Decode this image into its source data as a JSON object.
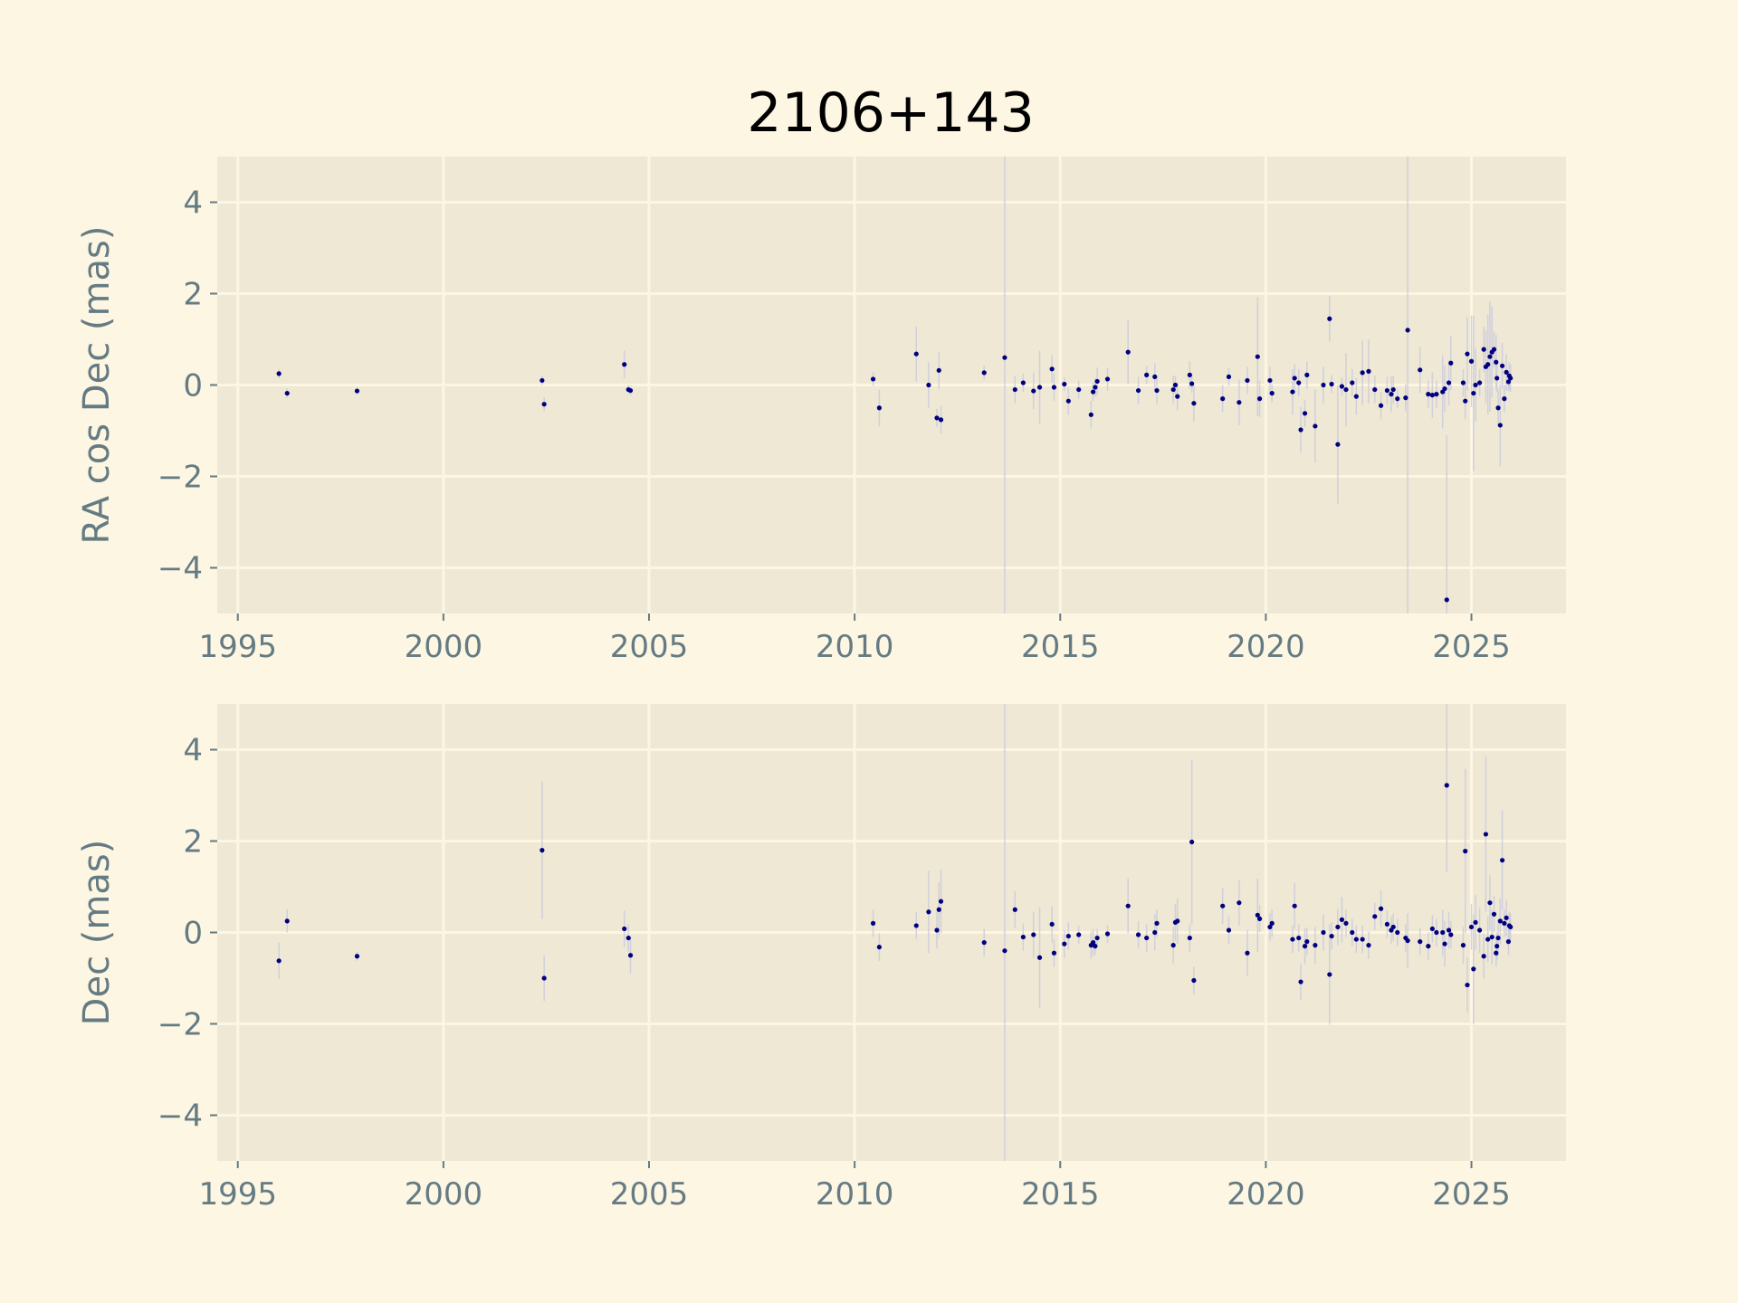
{
  "chart_data": {
    "type": "scatter",
    "title": "2106+143",
    "grid": true,
    "colors": {
      "figure_bg": "#fdf6e3",
      "axes_bg": "#eee8d5",
      "grid": "#fdf6e3",
      "tick_text": "#657b83",
      "marker": "#000080",
      "errorbar": "#c9c9dc"
    },
    "panels": [
      {
        "id": "ra",
        "ylabel": "RA cos Dec (mas)",
        "xlim": [
          1994.5,
          2027.3
        ],
        "ylim": [
          -5,
          5
        ],
        "xticks": [
          1995,
          2000,
          2005,
          2010,
          2015,
          2020,
          2025
        ],
        "xtick_labels": [
          "1995",
          "2000",
          "2005",
          "2010",
          "2015",
          "2020",
          "2025"
        ],
        "yticks": [
          -4,
          -2,
          0,
          2,
          4
        ],
        "ytick_labels": [
          "−4",
          "−2",
          "0",
          "2",
          "4"
        ],
        "points": [
          [
            1996.0,
            0.25,
            0.1
          ],
          [
            1996.2,
            -0.18,
            0.1
          ],
          [
            1997.9,
            -0.13,
            0.08
          ],
          [
            2002.4,
            0.1,
            0.1
          ],
          [
            2002.45,
            -0.42,
            0.15
          ],
          [
            2004.4,
            0.45,
            0.3
          ],
          [
            2004.5,
            -0.1,
            0.1
          ],
          [
            2004.55,
            -0.12,
            0.1
          ],
          [
            2010.45,
            0.13,
            0.15
          ],
          [
            2010.6,
            -0.5,
            0.4
          ],
          [
            2011.5,
            0.68,
            0.6
          ],
          [
            2011.8,
            0.0,
            0.5
          ],
          [
            2012.0,
            -0.72,
            0.2
          ],
          [
            2012.05,
            0.32,
            0.4
          ],
          [
            2012.1,
            -0.76,
            0.3
          ],
          [
            2013.15,
            0.27,
            0.15
          ],
          [
            2013.65,
            0.6,
            6.5
          ],
          [
            2013.9,
            -0.1,
            0.3
          ],
          [
            2014.1,
            0.05,
            0.2
          ],
          [
            2014.35,
            -0.13,
            0.4
          ],
          [
            2014.5,
            -0.05,
            0.8
          ],
          [
            2014.8,
            0.35,
            0.3
          ],
          [
            2014.85,
            -0.05,
            0.3
          ],
          [
            2015.1,
            0.02,
            0.15
          ],
          [
            2015.2,
            -0.35,
            0.3
          ],
          [
            2015.45,
            -0.1,
            0.2
          ],
          [
            2015.75,
            -0.65,
            0.3
          ],
          [
            2015.8,
            -0.15,
            0.2
          ],
          [
            2015.85,
            -0.05,
            0.2
          ],
          [
            2015.9,
            0.08,
            0.3
          ],
          [
            2016.15,
            0.13,
            0.25
          ],
          [
            2016.65,
            0.72,
            0.7
          ],
          [
            2016.9,
            -0.12,
            0.3
          ],
          [
            2017.1,
            0.22,
            0.2
          ],
          [
            2017.3,
            0.18,
            0.3
          ],
          [
            2017.35,
            -0.12,
            0.3
          ],
          [
            2017.75,
            -0.1,
            0.3
          ],
          [
            2017.8,
            0.0,
            0.2
          ],
          [
            2017.85,
            -0.25,
            0.3
          ],
          [
            2018.15,
            0.22,
            0.3
          ],
          [
            2018.2,
            0.03,
            0.2
          ],
          [
            2018.25,
            -0.4,
            0.4
          ],
          [
            2018.95,
            -0.3,
            0.3
          ],
          [
            2019.1,
            0.18,
            0.2
          ],
          [
            2019.35,
            -0.38,
            0.5
          ],
          [
            2019.55,
            0.1,
            0.3
          ],
          [
            2019.8,
            0.62,
            1.3
          ],
          [
            2019.85,
            -0.3,
            0.4
          ],
          [
            2020.1,
            0.1,
            0.3
          ],
          [
            2020.15,
            -0.18,
            0.2
          ],
          [
            2020.65,
            -0.15,
            0.5
          ],
          [
            2020.7,
            0.15,
            0.3
          ],
          [
            2020.8,
            0.05,
            0.3
          ],
          [
            2020.85,
            -0.98,
            0.5
          ],
          [
            2020.95,
            -0.62,
            0.3
          ],
          [
            2021.0,
            0.22,
            0.3
          ],
          [
            2021.2,
            -0.9,
            0.8
          ],
          [
            2021.4,
            0.0,
            0.4
          ],
          [
            2021.55,
            1.45,
            0.5
          ],
          [
            2021.6,
            0.02,
            0.2
          ],
          [
            2021.75,
            -1.3,
            1.3
          ],
          [
            2021.85,
            -0.03,
            0.2
          ],
          [
            2021.95,
            -0.1,
            0.8
          ],
          [
            2022.1,
            0.05,
            0.3
          ],
          [
            2022.2,
            -0.25,
            0.4
          ],
          [
            2022.35,
            0.27,
            0.7
          ],
          [
            2022.5,
            0.3,
            0.7
          ],
          [
            2022.65,
            -0.1,
            0.3
          ],
          [
            2022.8,
            -0.45,
            0.3
          ],
          [
            2022.95,
            -0.12,
            0.3
          ],
          [
            2023.05,
            -0.2,
            0.4
          ],
          [
            2023.1,
            -0.1,
            0.3
          ],
          [
            2023.2,
            -0.3,
            0.2
          ],
          [
            2023.4,
            -0.28,
            0.3
          ],
          [
            2023.45,
            1.2,
            6.5
          ],
          [
            2023.75,
            0.33,
            0.5
          ],
          [
            2023.95,
            -0.2,
            0.3
          ],
          [
            2024.05,
            -0.22,
            0.5
          ],
          [
            2024.15,
            -0.2,
            0.3
          ],
          [
            2024.3,
            -0.15,
            0.8
          ],
          [
            2024.35,
            -0.08,
            0.5
          ],
          [
            2024.4,
            -4.7,
            3.6
          ],
          [
            2024.45,
            0.05,
            0.5
          ],
          [
            2024.5,
            0.48,
            0.6
          ],
          [
            2024.8,
            0.05,
            0.3
          ],
          [
            2024.85,
            -0.35,
            0.4
          ],
          [
            2024.9,
            0.68,
            0.8
          ],
          [
            2025.0,
            0.52,
            1.0
          ],
          [
            2025.05,
            -0.18,
            1.7
          ],
          [
            2025.1,
            0.0,
            0.8
          ],
          [
            2025.2,
            0.05,
            0.3
          ],
          [
            2025.3,
            0.78,
            0.5
          ],
          [
            2025.35,
            0.4,
            0.8
          ],
          [
            2025.4,
            0.45,
            1.1
          ],
          [
            2025.45,
            0.62,
            1.2
          ],
          [
            2025.5,
            0.72,
            1.0
          ],
          [
            2025.55,
            0.78,
            0.4
          ],
          [
            2025.6,
            0.5,
            0.6
          ],
          [
            2025.62,
            0.15,
            0.3
          ],
          [
            2025.65,
            -0.5,
            0.4
          ],
          [
            2025.7,
            -0.88,
            0.9
          ],
          [
            2025.75,
            0.42,
            0.5
          ],
          [
            2025.8,
            -0.3,
            0.3
          ],
          [
            2025.85,
            0.28,
            0.4
          ],
          [
            2025.9,
            0.07,
            0.2
          ],
          [
            2025.92,
            0.2,
            0.3
          ],
          [
            2025.95,
            0.15,
            0.3
          ]
        ]
      },
      {
        "id": "dec",
        "ylabel": "Dec (mas)",
        "xlim": [
          1994.5,
          2027.3
        ],
        "ylim": [
          -5,
          5
        ],
        "xticks": [
          1995,
          2000,
          2005,
          2010,
          2015,
          2020,
          2025
        ],
        "xtick_labels": [
          "1995",
          "2000",
          "2005",
          "2010",
          "2015",
          "2020",
          "2025"
        ],
        "yticks": [
          -4,
          -2,
          0,
          2,
          4
        ],
        "ytick_labels": [
          "−4",
          "−2",
          "0",
          "2",
          "4"
        ],
        "points": [
          [
            1996.0,
            -0.62,
            0.4
          ],
          [
            1996.2,
            0.25,
            0.25
          ],
          [
            1997.9,
            -0.52,
            0.1
          ],
          [
            2002.4,
            1.8,
            1.5
          ],
          [
            2002.45,
            -1.0,
            0.5
          ],
          [
            2004.4,
            0.08,
            0.4
          ],
          [
            2004.5,
            -0.12,
            0.3
          ],
          [
            2004.55,
            -0.5,
            0.4
          ],
          [
            2010.45,
            0.2,
            0.3
          ],
          [
            2010.6,
            -0.32,
            0.3
          ],
          [
            2011.5,
            0.15,
            0.3
          ],
          [
            2011.8,
            0.45,
            0.9
          ],
          [
            2012.0,
            0.05,
            0.4
          ],
          [
            2012.05,
            0.5,
            0.6
          ],
          [
            2012.1,
            0.68,
            0.7
          ],
          [
            2013.15,
            -0.22,
            0.3
          ],
          [
            2013.65,
            -0.4,
            6.0
          ],
          [
            2013.9,
            0.5,
            0.4
          ],
          [
            2014.1,
            -0.1,
            0.3
          ],
          [
            2014.35,
            -0.05,
            0.5
          ],
          [
            2014.5,
            -0.55,
            1.1
          ],
          [
            2014.8,
            0.18,
            0.4
          ],
          [
            2014.85,
            -0.45,
            0.3
          ],
          [
            2015.1,
            -0.25,
            0.3
          ],
          [
            2015.2,
            -0.08,
            0.3
          ],
          [
            2015.45,
            -0.05,
            0.2
          ],
          [
            2015.75,
            -0.28,
            0.3
          ],
          [
            2015.8,
            -0.22,
            0.3
          ],
          [
            2015.85,
            -0.3,
            0.2
          ],
          [
            2015.9,
            -0.12,
            0.2
          ],
          [
            2016.15,
            -0.03,
            0.2
          ],
          [
            2016.65,
            0.58,
            0.6
          ],
          [
            2016.9,
            -0.05,
            0.3
          ],
          [
            2017.1,
            -0.12,
            0.3
          ],
          [
            2017.3,
            0.0,
            0.4
          ],
          [
            2017.35,
            0.2,
            0.3
          ],
          [
            2017.75,
            -0.28,
            0.4
          ],
          [
            2017.8,
            0.22,
            0.4
          ],
          [
            2017.85,
            0.25,
            0.5
          ],
          [
            2018.15,
            -0.12,
            0.3
          ],
          [
            2018.2,
            1.98,
            1.8
          ],
          [
            2018.25,
            -1.05,
            0.3
          ],
          [
            2018.95,
            0.58,
            0.4
          ],
          [
            2019.1,
            0.05,
            0.3
          ],
          [
            2019.35,
            0.65,
            0.5
          ],
          [
            2019.55,
            -0.45,
            0.5
          ],
          [
            2019.8,
            0.38,
            0.8
          ],
          [
            2019.85,
            0.3,
            0.3
          ],
          [
            2020.1,
            0.12,
            0.3
          ],
          [
            2020.15,
            0.2,
            0.3
          ],
          [
            2020.65,
            -0.15,
            0.3
          ],
          [
            2020.7,
            0.58,
            0.5
          ],
          [
            2020.8,
            -0.12,
            0.3
          ],
          [
            2020.85,
            -1.08,
            0.4
          ],
          [
            2020.95,
            -0.3,
            0.4
          ],
          [
            2021.0,
            -0.2,
            0.3
          ],
          [
            2021.2,
            -0.28,
            0.4
          ],
          [
            2021.4,
            0.0,
            0.4
          ],
          [
            2021.55,
            -0.92,
            1.1
          ],
          [
            2021.6,
            -0.08,
            0.3
          ],
          [
            2021.75,
            0.12,
            0.4
          ],
          [
            2021.85,
            0.28,
            0.5
          ],
          [
            2021.95,
            0.2,
            0.3
          ],
          [
            2022.1,
            0.0,
            0.3
          ],
          [
            2022.2,
            -0.15,
            0.3
          ],
          [
            2022.35,
            -0.15,
            0.3
          ],
          [
            2022.5,
            -0.28,
            0.3
          ],
          [
            2022.65,
            0.35,
            0.3
          ],
          [
            2022.8,
            0.52,
            0.4
          ],
          [
            2022.95,
            0.18,
            0.3
          ],
          [
            2023.05,
            0.05,
            0.3
          ],
          [
            2023.1,
            0.12,
            0.3
          ],
          [
            2023.2,
            0.0,
            0.3
          ],
          [
            2023.4,
            -0.12,
            0.3
          ],
          [
            2023.45,
            -0.18,
            0.6
          ],
          [
            2023.75,
            -0.2,
            0.3
          ],
          [
            2023.95,
            -0.3,
            0.3
          ],
          [
            2024.05,
            0.08,
            0.3
          ],
          [
            2024.15,
            0.0,
            0.3
          ],
          [
            2024.3,
            0.0,
            0.5
          ],
          [
            2024.35,
            -0.25,
            0.5
          ],
          [
            2024.4,
            3.22,
            1.9
          ],
          [
            2024.45,
            0.05,
            0.4
          ],
          [
            2024.5,
            -0.05,
            0.3
          ],
          [
            2024.8,
            -0.28,
            0.4
          ],
          [
            2024.85,
            1.78,
            1.8
          ],
          [
            2024.9,
            -1.15,
            0.6
          ],
          [
            2025.0,
            0.12,
            0.5
          ],
          [
            2025.05,
            -0.8,
            1.2
          ],
          [
            2025.1,
            0.22,
            0.6
          ],
          [
            2025.2,
            0.05,
            0.5
          ],
          [
            2025.3,
            -0.52,
            0.5
          ],
          [
            2025.35,
            2.15,
            1.7
          ],
          [
            2025.4,
            -0.15,
            0.5
          ],
          [
            2025.45,
            0.65,
            0.6
          ],
          [
            2025.5,
            -0.1,
            0.6
          ],
          [
            2025.55,
            0.4,
            0.4
          ],
          [
            2025.6,
            -0.45,
            0.3
          ],
          [
            2025.62,
            -0.3,
            0.3
          ],
          [
            2025.65,
            -0.12,
            0.4
          ],
          [
            2025.7,
            0.25,
            0.5
          ],
          [
            2025.75,
            1.58,
            1.1
          ],
          [
            2025.8,
            0.2,
            0.3
          ],
          [
            2025.85,
            0.32,
            0.4
          ],
          [
            2025.9,
            -0.2,
            0.3
          ],
          [
            2025.92,
            0.15,
            0.3
          ],
          [
            2025.95,
            0.12,
            0.3
          ]
        ]
      }
    ]
  }
}
